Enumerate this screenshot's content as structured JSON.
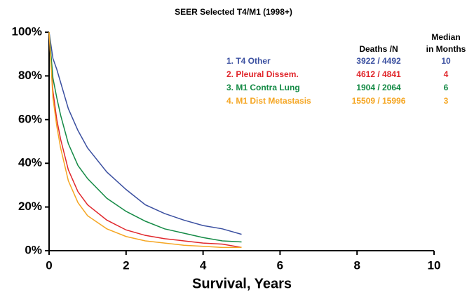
{
  "chart_data": {
    "type": "step-line",
    "title": "SEER Selected T4/M1 (1998+)",
    "x_label": "Survival, Years",
    "legend_headers": {
      "deaths": "Deaths /N",
      "median_line1": "Median",
      "median_line2": "in Months"
    },
    "x": [
      0,
      0.1,
      0.2,
      0.3,
      0.5,
      0.75,
      1,
      1.5,
      2,
      2.5,
      3,
      3.5,
      4,
      4.5,
      5
    ],
    "series": [
      {
        "name": "1. T4 Other",
        "color": "#3a4fa0",
        "deaths_n": "3922 / 4492",
        "median_months": 10,
        "values": [
          100,
          88,
          83,
          77,
          65,
          55,
          47,
          36,
          28,
          21,
          17,
          14,
          11.5,
          10,
          7.5
        ]
      },
      {
        "name": "2. Pleural Dissem.",
        "color": "#e0262b",
        "deaths_n": "4612 / 4841",
        "median_months": 4,
        "values": [
          100,
          73,
          60,
          51,
          37,
          27,
          21,
          14,
          9.5,
          7,
          5.5,
          4.5,
          3.5,
          3,
          1.5
        ]
      },
      {
        "name": "3. M1 Contra Lung",
        "color": "#148a45",
        "deaths_n": "1904 / 2064",
        "median_months": 6,
        "values": [
          100,
          79,
          70,
          62,
          49,
          39,
          33,
          24,
          18,
          13.5,
          10,
          8,
          6,
          4.5,
          4
        ]
      },
      {
        "name": "4. M1 Dist Metastasis",
        "color": "#f5a623",
        "deaths_n": "15509 / 15996",
        "median_months": 3,
        "values": [
          100,
          70,
          57,
          47,
          32,
          22,
          16,
          10,
          6.5,
          4.5,
          3.5,
          2.5,
          2,
          1.5,
          1.5
        ]
      }
    ],
    "xlim": [
      0,
      10
    ],
    "xticks": [
      0,
      2,
      4,
      6,
      8,
      10
    ],
    "ylim": [
      0,
      100
    ],
    "yticks": [
      {
        "value": 0,
        "label": "0%"
      },
      {
        "value": 20,
        "label": "20%"
      },
      {
        "value": 40,
        "label": "40%"
      },
      {
        "value": 60,
        "label": "60%"
      },
      {
        "value": 80,
        "label": "80%"
      },
      {
        "value": 100,
        "label": "100%"
      }
    ]
  }
}
